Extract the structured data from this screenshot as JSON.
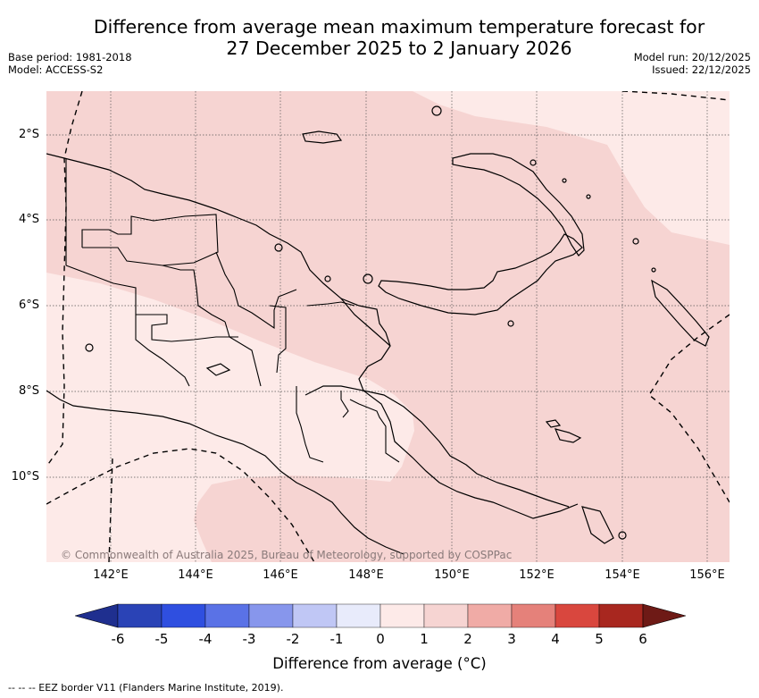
{
  "title": {
    "line1": "Difference from average mean maximum temperature forecast for",
    "line2": "27 December 2025 to 2 January 2026"
  },
  "meta": {
    "base_period": "Base period: 1981-2018",
    "model": "Model: ACCESS-S2",
    "model_run": "Model run: 20/12/2025",
    "issued": "Issued: 22/12/2025"
  },
  "map": {
    "lat_labels": [
      "2°S",
      "4°S",
      "6°S",
      "8°S",
      "10°S"
    ],
    "lon_labels": [
      "142°E",
      "144°E",
      "146°E",
      "148°E",
      "150°E",
      "152°E",
      "154°E",
      "156°E"
    ],
    "copyright": "© Commonwealth of Australia 2025, Bureau of Meteorology, supported by COSPPac"
  },
  "colorbar": {
    "ticks": [
      "-6",
      "-5",
      "-4",
      "-3",
      "-2",
      "-1",
      "0",
      "1",
      "2",
      "3",
      "4",
      "5",
      "6"
    ],
    "label": "Difference from average (°C)",
    "colors": [
      "#1f2f8f",
      "#2a43b6",
      "#2f4fe0",
      "#5a72e6",
      "#8796ec",
      "#c0c7f5",
      "#e8ebfb",
      "#fdeae8",
      "#f6d4d2",
      "#f0aba6",
      "#e5817a",
      "#d9473e",
      "#a8271f",
      "#6e1a16"
    ],
    "underflow_color": "#1f2f8f",
    "overflow_color": "#6e1a16"
  },
  "footnote": "-- -- -- EEZ border V11 (Flanders Marine Institute, 2019)."
}
